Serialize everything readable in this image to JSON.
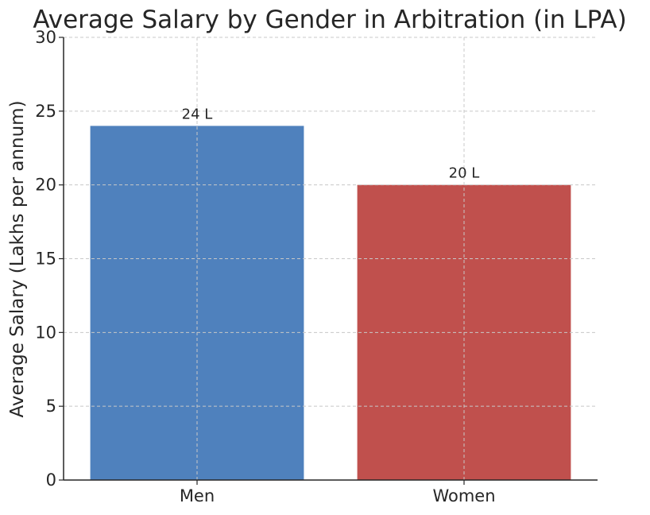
{
  "chart_data": {
    "type": "bar",
    "title": "Average Salary by Gender in Arbitration (in LPA)",
    "xlabel": "",
    "ylabel": "Average Salary (Lakhs per annum)",
    "categories": [
      "Men",
      "Women"
    ],
    "values": [
      24,
      20
    ],
    "data_labels": [
      "24 L",
      "20 L"
    ],
    "colors": [
      "#4f81bd",
      "#c0504d"
    ],
    "ylim": [
      0,
      30
    ],
    "yticks": [
      0,
      5,
      10,
      15,
      20,
      25,
      30
    ],
    "grid": true
  }
}
